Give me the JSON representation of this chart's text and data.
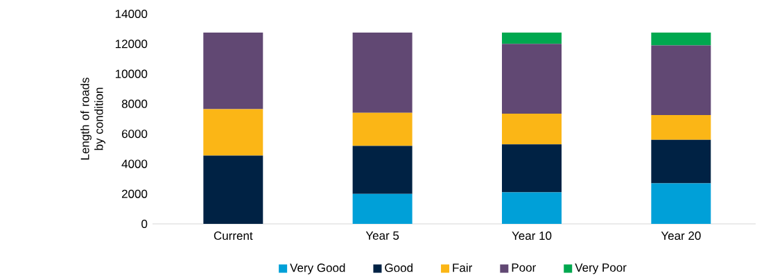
{
  "chart_data": {
    "type": "bar",
    "stacked": true,
    "ylabel": "Length of roads by condition",
    "categories": [
      "Current",
      "Year 5",
      "Year 10",
      "Year 20"
    ],
    "series": [
      {
        "name": "Very Good",
        "color": "#00a0d8",
        "values": [
          0,
          2000,
          2100,
          2700
        ]
      },
      {
        "name": "Good",
        "color": "#002244",
        "values": [
          4550,
          3200,
          3200,
          2900
        ]
      },
      {
        "name": "Fair",
        "color": "#fbb616",
        "values": [
          3100,
          2200,
          2050,
          1650
        ]
      },
      {
        "name": "Poor",
        "color": "#614873",
        "values": [
          5100,
          5350,
          4650,
          4650
        ]
      },
      {
        "name": "Very Poor",
        "color": "#00a84f",
        "values": [
          0,
          0,
          750,
          850
        ]
      }
    ],
    "ylim": [
      0,
      14000
    ],
    "yticks": [
      0,
      2000,
      4000,
      6000,
      8000,
      10000,
      12000,
      14000
    ],
    "legend": "bottom"
  }
}
